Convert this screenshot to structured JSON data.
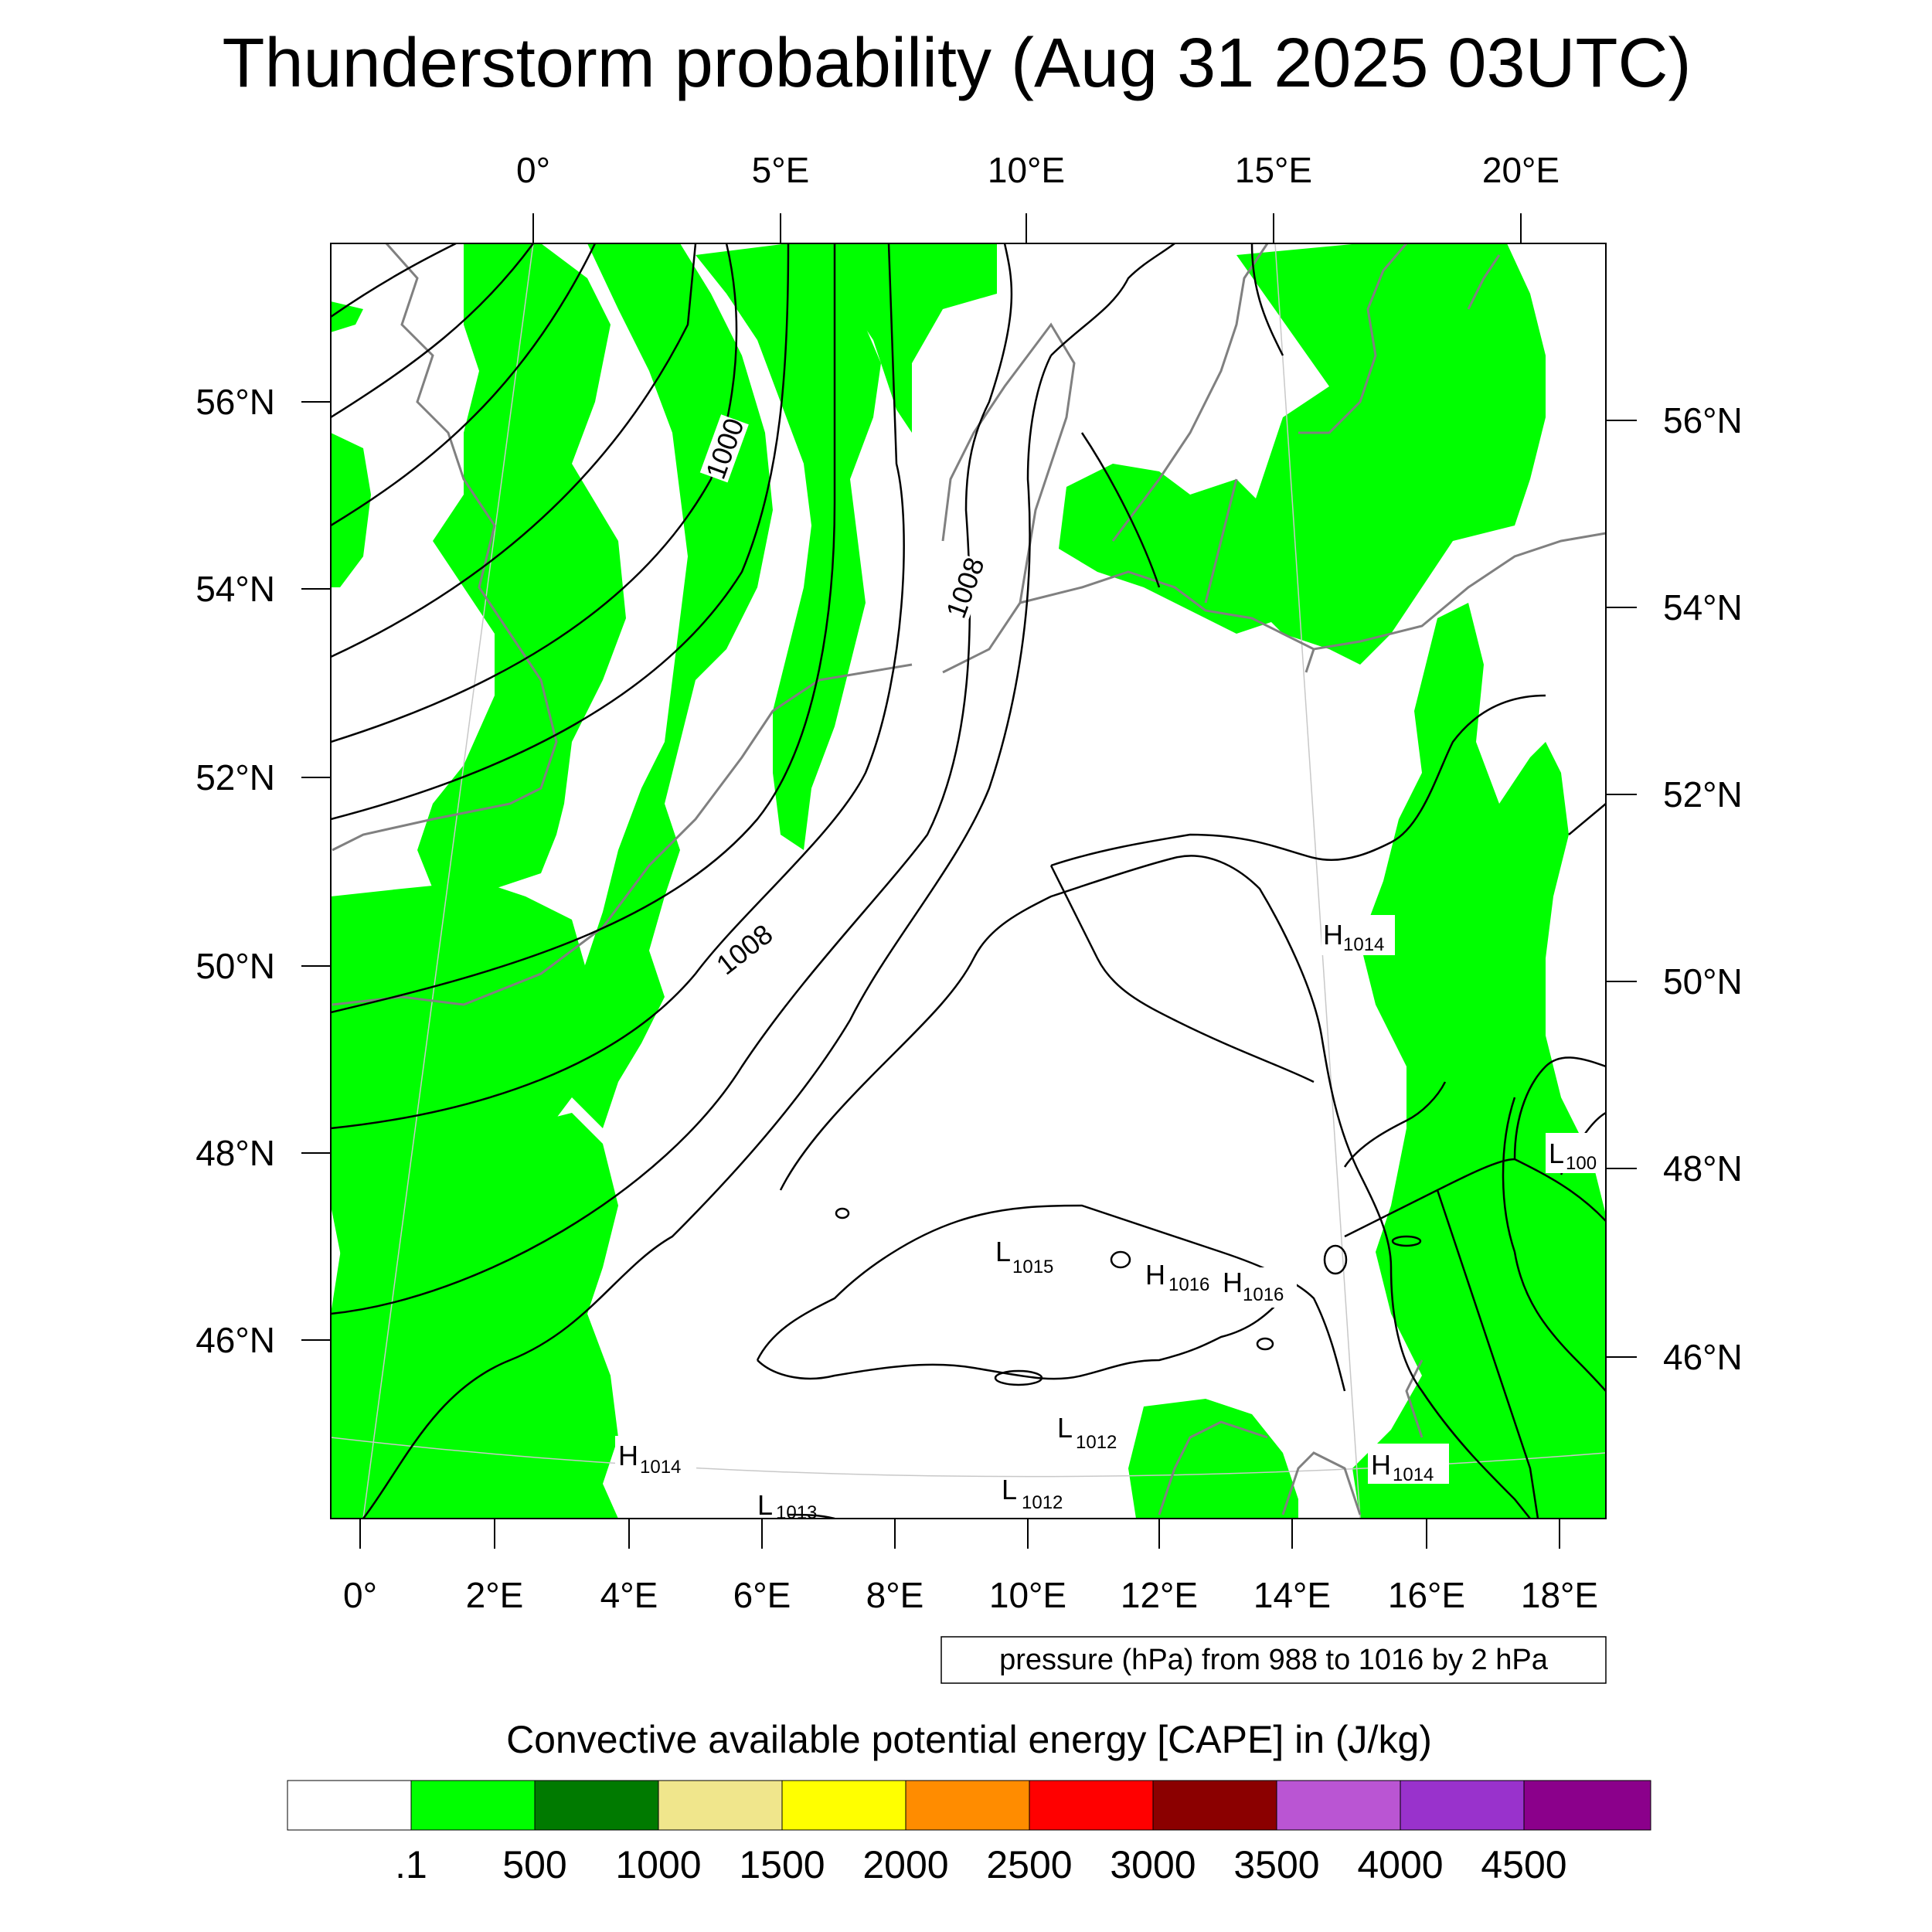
{
  "title": "Thunderstorm probability (Aug 31 2025 03UTC)",
  "top_lon_labels": [
    "0°",
    "5°E",
    "10°E",
    "15°E",
    "20°E"
  ],
  "bottom_lon_labels": [
    "0°",
    "2°E",
    "4°E",
    "6°E",
    "8°E",
    "10°E",
    "12°E",
    "14°E",
    "16°E",
    "18°E"
  ],
  "left_lat_labels": [
    "56°N",
    "54°N",
    "52°N",
    "50°N",
    "48°N",
    "46°N"
  ],
  "right_lat_labels": [
    "56°N",
    "54°N",
    "52°N",
    "50°N",
    "48°N",
    "46°N"
  ],
  "contour_note": "pressure (hPa) from 988 to 1016 by 2 hPa",
  "contour_labels": [
    "1000",
    "1008",
    "1008"
  ],
  "pressure_centers": [
    {
      "type": "H",
      "value": "1014"
    },
    {
      "type": "L",
      "value": "100"
    },
    {
      "type": "L",
      "value": "1015"
    },
    {
      "type": "H",
      "value": "1016"
    },
    {
      "type": "H",
      "value": "1016"
    },
    {
      "type": "L",
      "value": "1012"
    },
    {
      "type": "H",
      "value": "1014"
    },
    {
      "type": "L",
      "value": "1012"
    },
    {
      "type": "L",
      "value": "1013"
    },
    {
      "type": "H",
      "value": "1014"
    }
  ],
  "colorbar": {
    "title": "Convective available potential energy [CAPE] in (J/kg)",
    "tick_labels": [
      ".1",
      "500",
      "1000",
      "1500",
      "2000",
      "2500",
      "3000",
      "3500",
      "4000",
      "4500"
    ],
    "colors": [
      "#ffffff",
      "#00ff00",
      "#007a00",
      "#f0e68c",
      "#ffff00",
      "#ff8c00",
      "#ff0000",
      "#8b0000",
      "#ba55d3",
      "#9932cc",
      "#8b008b"
    ]
  },
  "legend_cape_color": "#00ff00"
}
